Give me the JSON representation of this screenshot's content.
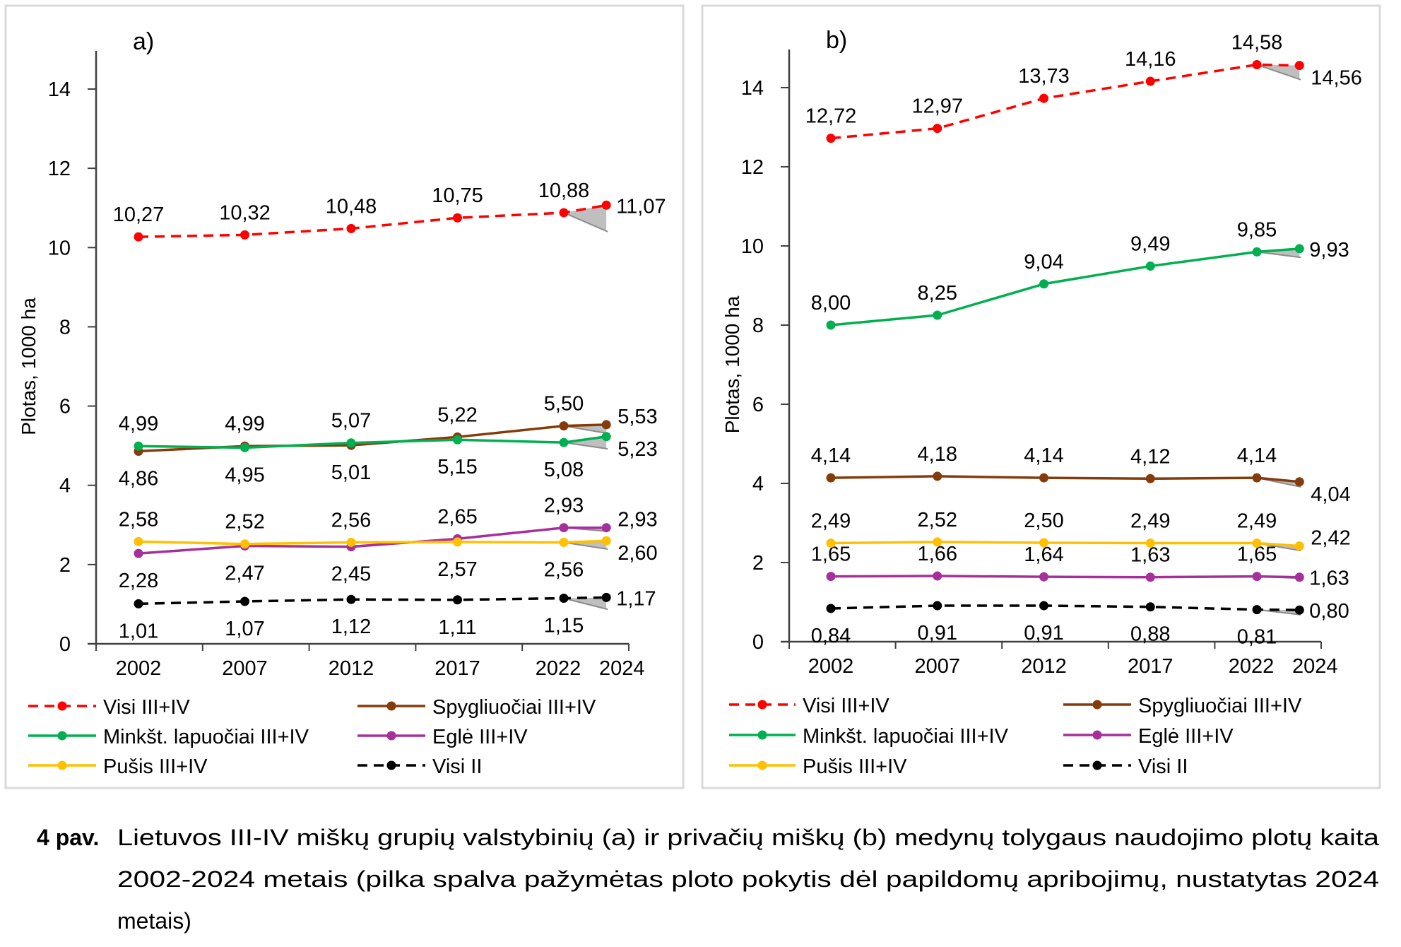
{
  "caption": {
    "label": "4 pav.",
    "lines": [
      "Lietuvos III-IV miškų grupių valstybinių (a) ir privačių miškų (b) medynų tolygaus naudojimo plotų kaita",
      "2002-2024 metais (pilka spalva pažymėtas ploto pokytis dėl papildomų apribojimų, nustatytas 2024",
      "metais)"
    ]
  },
  "chart_data": [
    {
      "type": "line",
      "panel_label": "a)",
      "ylabel": "Plotas, 1000 ha",
      "xlabel": "",
      "ylim": [
        0,
        15
      ],
      "yticks": [
        0,
        2,
        4,
        6,
        8,
        10,
        12,
        14
      ],
      "x": [
        2002,
        2007,
        2012,
        2017,
        2022,
        2024
      ],
      "xtick_labels": [
        "2002",
        "2007",
        "2012",
        "2017",
        "2022",
        "2024"
      ],
      "grid": false,
      "legend": "bottom",
      "series": [
        {
          "name": "Visi III+IV",
          "color": "#ff0000",
          "dash": "dashed",
          "values": [
            10.27,
            10.32,
            10.48,
            10.75,
            10.88,
            11.07
          ],
          "labels": [
            "10,27",
            "10,32",
            "10,48",
            "10,75",
            "10,88",
            "11,07"
          ],
          "label_pos": [
            "above",
            "above",
            "above",
            "above",
            "above",
            "right"
          ],
          "restricted_2024": 10.4
        },
        {
          "name": "Spygliuočiai III+IV",
          "color": "#843c0c",
          "dash": "solid",
          "values": [
            4.86,
            4.99,
            5.01,
            5.22,
            5.5,
            5.53
          ],
          "labels": [
            "4,86",
            "4,99",
            "5,01",
            "5,22",
            "5,50",
            "5,53"
          ],
          "label_pos": [
            "below",
            "above",
            "below",
            "above",
            "above",
            "right-up"
          ],
          "restricted_2024": 5.31
        },
        {
          "name": "Minkšt. lapuočiai III+IV",
          "color": "#00b050",
          "dash": "solid",
          "values": [
            4.99,
            4.95,
            5.07,
            5.15,
            5.08,
            5.23
          ],
          "labels": [
            "4,99",
            "4,95",
            "5,07",
            "5,15",
            "5,08",
            "5,23"
          ],
          "label_pos": [
            "above",
            "below",
            "above",
            "below",
            "below",
            "right-down"
          ],
          "restricted_2024": 4.92
        },
        {
          "name": "Eglė III+IV",
          "color": "#a5309b",
          "dash": "solid",
          "values": [
            2.28,
            2.47,
            2.45,
            2.65,
            2.93,
            2.93
          ],
          "labels": [
            "2,28",
            "2,47",
            "2,45",
            "2,65",
            "2,93",
            "2,93"
          ],
          "label_pos": [
            "below",
            "below",
            "below",
            "above",
            "above",
            "right-up"
          ],
          "restricted_2024": 2.84
        },
        {
          "name": "Pušis III+IV",
          "color": "#ffc000",
          "dash": "solid",
          "values": [
            2.58,
            2.52,
            2.56,
            2.57,
            2.56,
            2.6
          ],
          "labels": [
            "2,58",
            "2,52",
            "2,56",
            "2,57",
            "2,56",
            "2,60"
          ],
          "label_pos": [
            "above",
            "above",
            "above",
            "below",
            "below",
            "right-down"
          ],
          "restricted_2024": 2.39
        },
        {
          "name": "Visi II",
          "color": "#000000",
          "dash": "dashed",
          "values": [
            1.01,
            1.07,
            1.12,
            1.11,
            1.15,
            1.17
          ],
          "labels": [
            "1,01",
            "1,07",
            "1,12",
            "1,11",
            "1,15",
            "1,17"
          ],
          "label_pos": [
            "below",
            "below",
            "below",
            "below",
            "below",
            "right"
          ],
          "restricted_2024": 0.87
        }
      ]
    },
    {
      "type": "line",
      "panel_label": "b)",
      "ylabel": "Plotas, 1000 ha",
      "xlabel": "",
      "ylim": [
        0,
        15
      ],
      "yticks": [
        0,
        2,
        4,
        6,
        8,
        10,
        12,
        14
      ],
      "x": [
        2002,
        2007,
        2012,
        2017,
        2022,
        2024
      ],
      "xtick_labels": [
        "2002",
        "2007",
        "2012",
        "2017",
        "2022",
        "2024"
      ],
      "grid": false,
      "legend": "bottom",
      "series": [
        {
          "name": "Visi III+IV",
          "color": "#ff0000",
          "dash": "dashed",
          "values": [
            12.72,
            12.97,
            13.73,
            14.16,
            14.58,
            14.56
          ],
          "labels": [
            "12,72",
            "12,97",
            "13,73",
            "14,16",
            "14,58",
            "14,56"
          ],
          "label_pos": [
            "above",
            "above",
            "above",
            "above",
            "above",
            "right-down"
          ],
          "restricted_2024": 14.2
        },
        {
          "name": "Spygliuočiai III+IV",
          "color": "#843c0c",
          "dash": "solid",
          "values": [
            4.14,
            4.18,
            4.14,
            4.12,
            4.14,
            4.04
          ],
          "labels": [
            "4,14",
            "4,18",
            "4,14",
            "4,12",
            "4,14",
            "4,04"
          ],
          "label_pos": [
            "above",
            "above",
            "above",
            "above",
            "above",
            "right-down"
          ],
          "restricted_2024": 3.91
        },
        {
          "name": "Minkšt. lapuočiai III+IV",
          "color": "#00b050",
          "dash": "solid",
          "values": [
            8.0,
            8.25,
            9.04,
            9.49,
            9.85,
            9.93
          ],
          "labels": [
            "8,00",
            "8,25",
            "9,04",
            "9,49",
            "9,85",
            "9,93"
          ],
          "label_pos": [
            "above",
            "above",
            "above",
            "above",
            "above",
            "right"
          ],
          "restricted_2024": 9.71
        },
        {
          "name": "Eglė III+IV",
          "color": "#a5309b",
          "dash": "solid",
          "values": [
            1.65,
            1.66,
            1.64,
            1.63,
            1.65,
            1.63
          ],
          "labels": [
            "1,65",
            "1,66",
            "1,64",
            "1,63",
            "1,65",
            "1,63"
          ],
          "label_pos": [
            "above",
            "above",
            "above",
            "above",
            "above",
            "right"
          ],
          "restricted_2024": 1.6
        },
        {
          "name": "Pušis III+IV",
          "color": "#ffc000",
          "dash": "solid",
          "values": [
            2.49,
            2.52,
            2.5,
            2.49,
            2.49,
            2.42
          ],
          "labels": [
            "2,49",
            "2,52",
            "2,50",
            "2,49",
            "2,49",
            "2,42"
          ],
          "label_pos": [
            "above",
            "above",
            "above",
            "above",
            "above",
            "right-up"
          ],
          "restricted_2024": 2.3
        },
        {
          "name": "Visi II",
          "color": "#000000",
          "dash": "dashed",
          "values": [
            0.84,
            0.91,
            0.91,
            0.88,
            0.81,
            0.8
          ],
          "labels": [
            "0,84",
            "0,91",
            "0,91",
            "0,88",
            "0,81",
            "0,80"
          ],
          "label_pos": [
            "below",
            "below",
            "below",
            "below",
            "below",
            "right"
          ],
          "restricted_2024": 0.68
        }
      ]
    }
  ],
  "legend_order": [
    "Visi III+IV",
    "Spygliuočiai III+IV",
    "Minkšt. lapuočiai III+IV",
    "Eglė III+IV",
    "Pušis III+IV",
    "Visi II"
  ]
}
